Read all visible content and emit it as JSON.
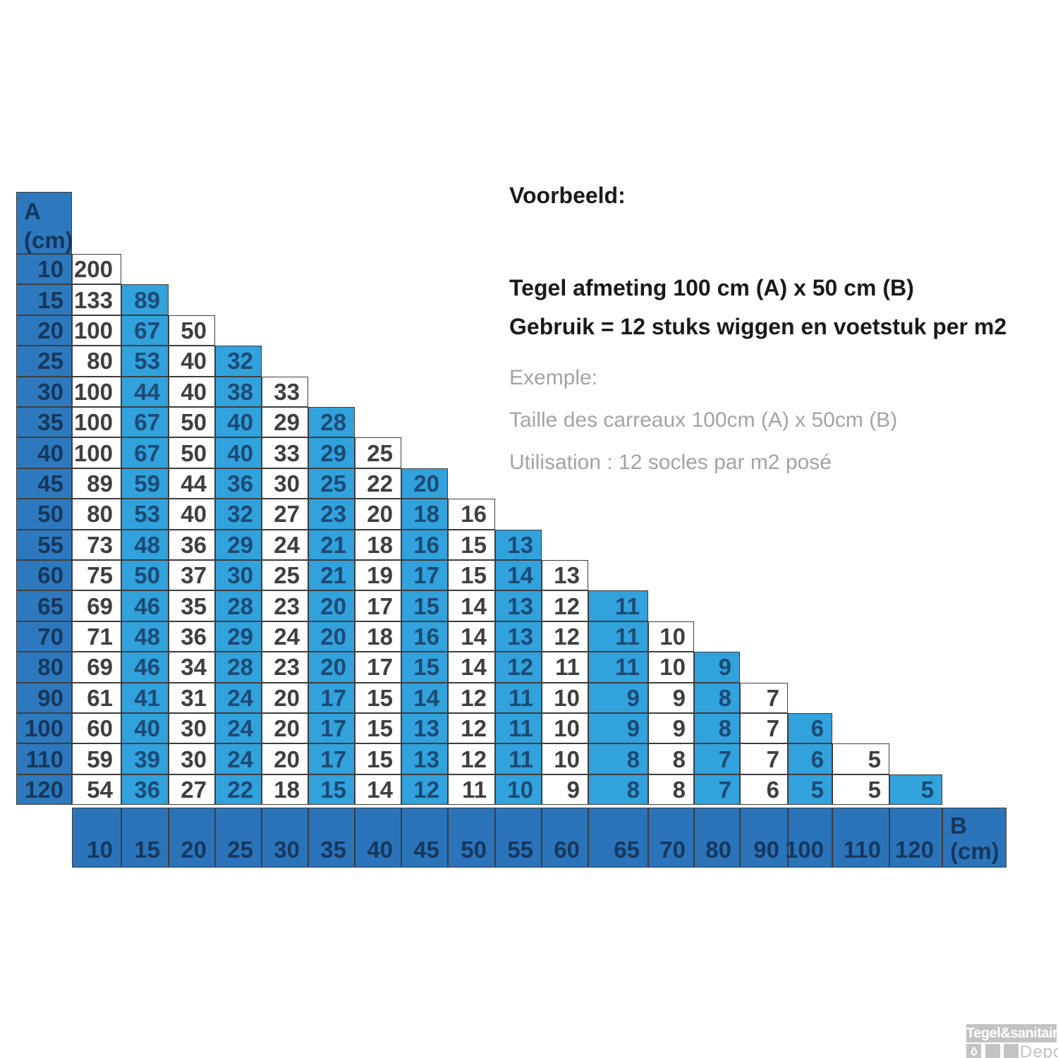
{
  "example": {
    "heading_nl": "Voorbeeld:",
    "tile_size_nl": "Tegel afmeting 100 cm (A) x 50 cm (B)",
    "usage_nl": "Gebruik = 12 stuks wiggen en voetstuk per m2",
    "heading_fr": "Exemple:",
    "tile_size_fr": "Taille des carreaux 100cm (A) x 50cm (B)",
    "usage_fr": "Utilisation : 12 socles par m2 posé"
  },
  "chart_data": {
    "type": "table",
    "row_header": {
      "letter": "A",
      "unit": "(cm)"
    },
    "col_header": {
      "letter": "B",
      "unit": "(cm)"
    },
    "row_labels": [
      10,
      15,
      20,
      25,
      30,
      35,
      40,
      45,
      50,
      55,
      60,
      65,
      70,
      80,
      90,
      100,
      110,
      120
    ],
    "col_labels": [
      10,
      15,
      20,
      25,
      30,
      35,
      40,
      45,
      50,
      55,
      60,
      65,
      70,
      80,
      90,
      100,
      110,
      120
    ],
    "rows": [
      [
        200
      ],
      [
        133,
        89
      ],
      [
        100,
        67,
        50
      ],
      [
        80,
        53,
        40,
        32
      ],
      [
        100,
        44,
        40,
        38,
        33
      ],
      [
        100,
        67,
        50,
        40,
        29,
        28
      ],
      [
        100,
        67,
        50,
        40,
        33,
        29,
        25
      ],
      [
        89,
        59,
        44,
        36,
        30,
        25,
        22,
        20
      ],
      [
        80,
        53,
        40,
        32,
        27,
        23,
        20,
        18,
        16
      ],
      [
        73,
        48,
        36,
        29,
        24,
        21,
        18,
        16,
        15,
        13
      ],
      [
        75,
        50,
        37,
        30,
        25,
        21,
        19,
        17,
        15,
        14,
        13
      ],
      [
        69,
        46,
        35,
        28,
        23,
        20,
        17,
        15,
        14,
        13,
        12,
        11
      ],
      [
        71,
        48,
        36,
        29,
        24,
        20,
        18,
        16,
        14,
        13,
        12,
        11,
        10
      ],
      [
        69,
        46,
        34,
        28,
        23,
        20,
        17,
        15,
        14,
        12,
        11,
        11,
        10,
        9
      ],
      [
        61,
        41,
        31,
        24,
        20,
        17,
        15,
        14,
        12,
        11,
        10,
        9,
        9,
        8,
        7
      ],
      [
        60,
        40,
        30,
        24,
        20,
        17,
        15,
        13,
        12,
        11,
        10,
        9,
        9,
        8,
        7,
        6
      ],
      [
        59,
        39,
        30,
        24,
        20,
        17,
        15,
        13,
        12,
        11,
        10,
        8,
        8,
        7,
        7,
        6,
        5
      ],
      [
        54,
        36,
        27,
        22,
        18,
        15,
        14,
        12,
        11,
        10,
        9,
        8,
        8,
        7,
        6,
        5,
        5,
        5
      ]
    ],
    "legend": "blue-and-white alternating columns; left column = A (cm), bottom row = B (cm)"
  },
  "logo": {
    "brand": "Tegel&sanitair",
    "sub": "Depot"
  },
  "colors": {
    "dark_blue": "#2e79bd",
    "strip_blue": "#2b74ba",
    "light_blue": "#31a2dc",
    "header_text": "#16375e",
    "white_cell_text": "#3f3f3f",
    "blue_cell_text": "#1c4a75",
    "gray_text": "#a3a3a3",
    "logo_gray": "#c3c3c3"
  }
}
